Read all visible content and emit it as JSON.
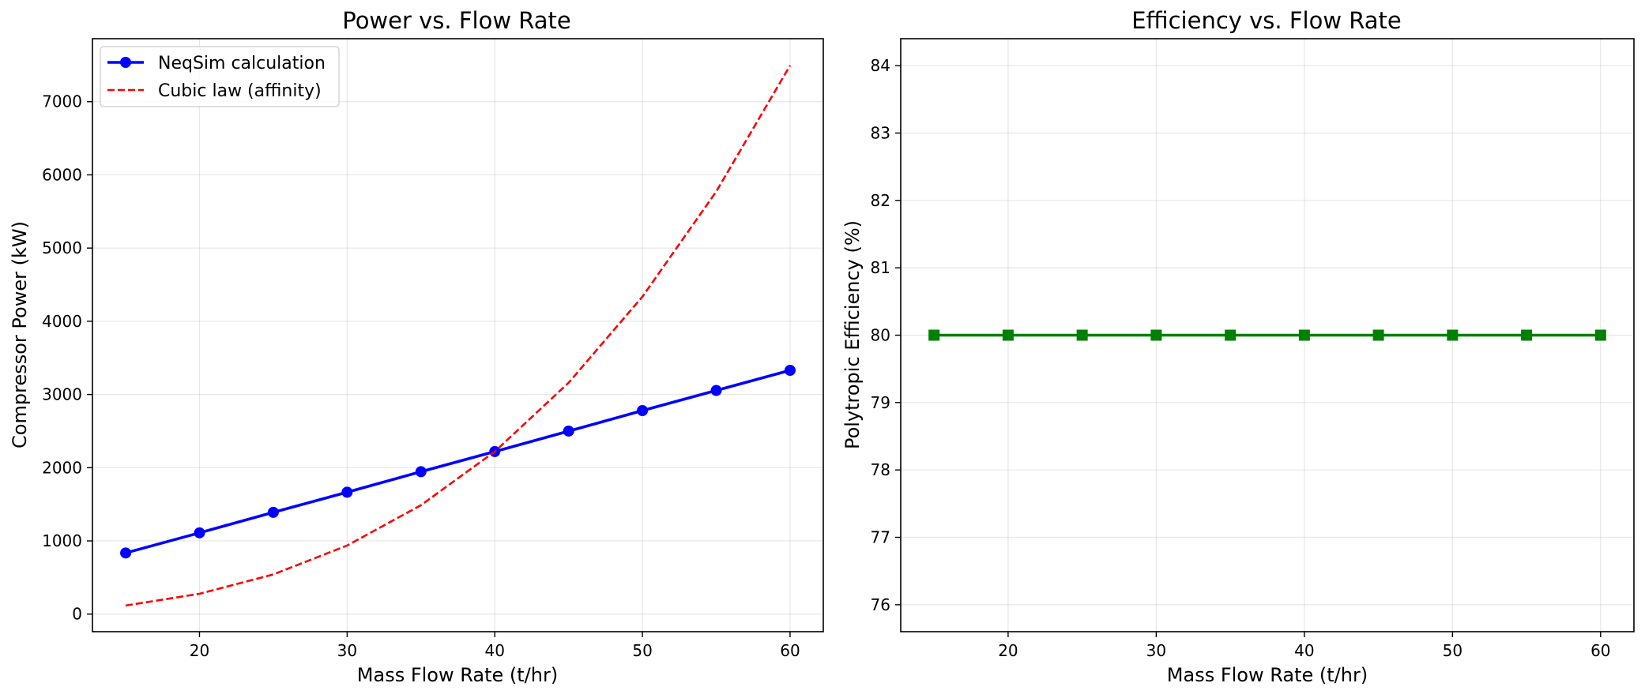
{
  "chart_data": [
    {
      "type": "line",
      "title": "Power vs. Flow Rate",
      "xlabel": "Mass Flow Rate (t/hr)",
      "ylabel": "Compressor Power (kW)",
      "xlim": [
        12.75,
        62.25
      ],
      "ylim": [
        -240,
        7860
      ],
      "xticks": [
        20,
        30,
        40,
        50,
        60
      ],
      "yticks": [
        0,
        1000,
        2000,
        3000,
        4000,
        5000,
        6000,
        7000
      ],
      "grid": true,
      "legend_position": "upper-left",
      "x": [
        15,
        20,
        25,
        30,
        35,
        40,
        45,
        50,
        55,
        60
      ],
      "series": [
        {
          "name": "NeqSim calculation",
          "style": "solid",
          "marker": "circle",
          "color": "#0000ff",
          "values": [
            835,
            1110,
            1390,
            1665,
            1945,
            2220,
            2500,
            2780,
            3055,
            3330
          ]
        },
        {
          "name": "Cubic law (affinity)",
          "style": "dashed",
          "marker": "none",
          "color": "#ff0000",
          "values": [
            117,
            278,
            542,
            937,
            1488,
            2220,
            3161,
            4336,
            5772,
            7494
          ]
        }
      ]
    },
    {
      "type": "line",
      "title": "Efficiency vs. Flow Rate",
      "xlabel": "Mass Flow Rate (t/hr)",
      "ylabel": "Polytropic Efficiency (%)",
      "xlim": [
        12.75,
        62.25
      ],
      "ylim": [
        75.6,
        84.4
      ],
      "xticks": [
        20,
        30,
        40,
        50,
        60
      ],
      "yticks": [
        76,
        77,
        78,
        79,
        80,
        81,
        82,
        83,
        84
      ],
      "grid": true,
      "x": [
        15,
        20,
        25,
        30,
        35,
        40,
        45,
        50,
        55,
        60
      ],
      "series": [
        {
          "name": "",
          "style": "solid",
          "marker": "square",
          "color": "#008000",
          "values": [
            80,
            80,
            80,
            80,
            80,
            80,
            80,
            80,
            80,
            80
          ]
        }
      ]
    }
  ]
}
